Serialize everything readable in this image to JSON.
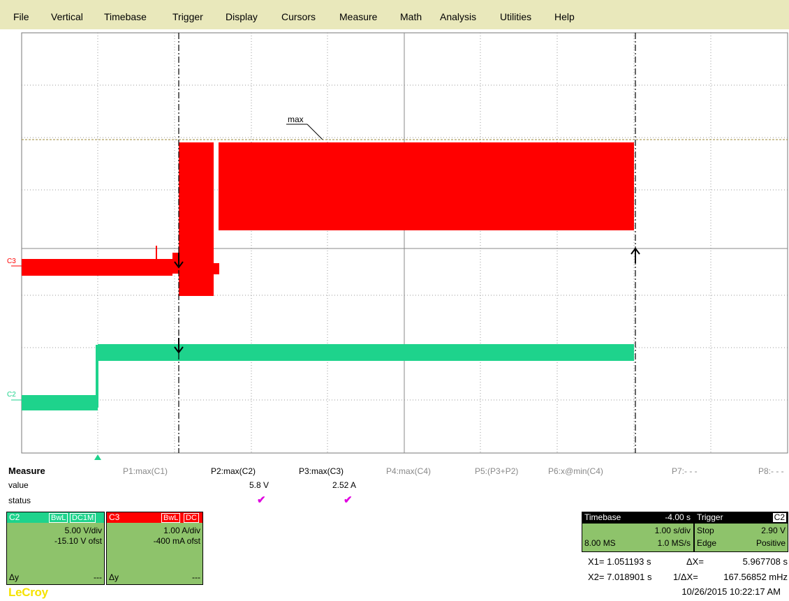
{
  "menu": [
    "File",
    "Vertical",
    "Timebase",
    "Trigger",
    "Display",
    "Cursors",
    "Measure",
    "Math",
    "Analysis",
    "Utilities",
    "Help"
  ],
  "colors": {
    "menu_bg": "#e9e8bb",
    "c3": "#ff0000",
    "c2": "#1ed38c",
    "panel": "#8ec36b",
    "check": "#e000e0",
    "logo": "#f5e200"
  },
  "screen": {
    "max_label": "max",
    "c3_marker": "C3",
    "c2_marker": "C2"
  },
  "measure": {
    "title": "Measure",
    "row_value": "value",
    "row_status": "status",
    "params": [
      {
        "label": "P1:max(C1)",
        "value": "",
        "check": false
      },
      {
        "label": "P2:max(C2)",
        "value": "5.8 V",
        "check": true
      },
      {
        "label": "P3:max(C3)",
        "value": "2.52 A",
        "check": true
      },
      {
        "label": "P4:max(C4)",
        "value": "",
        "check": false
      },
      {
        "label": "P5:(P3+P2)",
        "value": "",
        "check": false
      },
      {
        "label": "P6:x@min(C4)",
        "value": "",
        "check": false
      },
      {
        "label": "P7:- - -",
        "value": "",
        "check": false
      },
      {
        "label": "P8:- - -",
        "value": "",
        "check": false
      }
    ],
    "check_glyph": "✔"
  },
  "channels": [
    {
      "id": "C2",
      "bwl": "BwL",
      "coupling": "DC1M",
      "vdiv": "5.00 V/div",
      "offset": "-15.10 V ofst",
      "dy": "Δy",
      "dy_value": "---"
    },
    {
      "id": "C3",
      "bwl": "BwL",
      "coupling": "DC",
      "vdiv": "1.00 A/div",
      "offset": "-400 mA ofst",
      "dy": "Δy",
      "dy_value": "---"
    }
  ],
  "timebase": {
    "label": "Timebase",
    "delay": "-4.00 s",
    "tdiv": "1.00 s/div",
    "samples": "8.00 MS",
    "rate": "1.0 MS/s"
  },
  "trigger": {
    "label": "Trigger",
    "source": "C2",
    "mode": "Stop",
    "level": "2.90 V",
    "type": "Edge",
    "slope": "Positive"
  },
  "cursors": {
    "x1": "X1= 1.051193 s",
    "dx_label": "ΔX=",
    "dx": "5.967708 s",
    "x2": "X2= 7.018901 s",
    "inv_label": "1/ΔX=",
    "inv": "167.56852 mHz"
  },
  "datetime": "10/26/2015 10:22:17 AM",
  "brand": "LeCroy"
}
